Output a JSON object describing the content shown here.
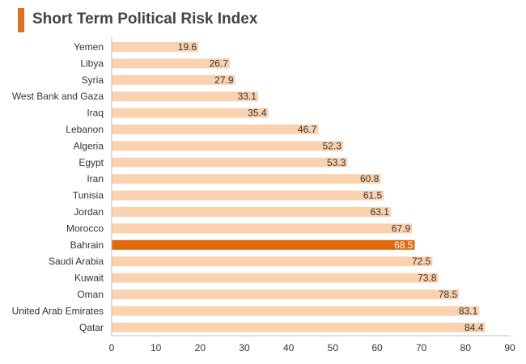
{
  "title": "Short Term Political Risk Index",
  "colors": {
    "accent": "#e07020",
    "bar": "#fad2b0",
    "highlight": "#e0690f",
    "axis": "#bfbfbf"
  },
  "chart_data": {
    "type": "bar",
    "orientation": "horizontal",
    "title": "Short Term Political Risk Index",
    "xlabel": "",
    "ylabel": "",
    "xlim": [
      0,
      90
    ],
    "xticks": [
      0,
      10,
      20,
      30,
      40,
      50,
      60,
      70,
      80,
      90
    ],
    "grid": false,
    "legend": "none",
    "highlight": "Bahrain",
    "categories": [
      "Yemen",
      "Libya",
      "Syria",
      "West Bank and Gaza",
      "Iraq",
      "Lebanon",
      "Algeria",
      "Egypt",
      "Iran",
      "Tunisia",
      "Jordan",
      "Morocco",
      "Bahrain",
      "Saudi Arabia",
      "Kuwait",
      "Oman",
      "United Arab Emirates",
      "Qatar"
    ],
    "values": [
      19.6,
      26.7,
      27.9,
      33.1,
      35.4,
      46.7,
      52.3,
      53.3,
      60.8,
      61.5,
      63.1,
      67.9,
      68.5,
      72.5,
      73.8,
      78.5,
      83.1,
      84.4
    ]
  }
}
